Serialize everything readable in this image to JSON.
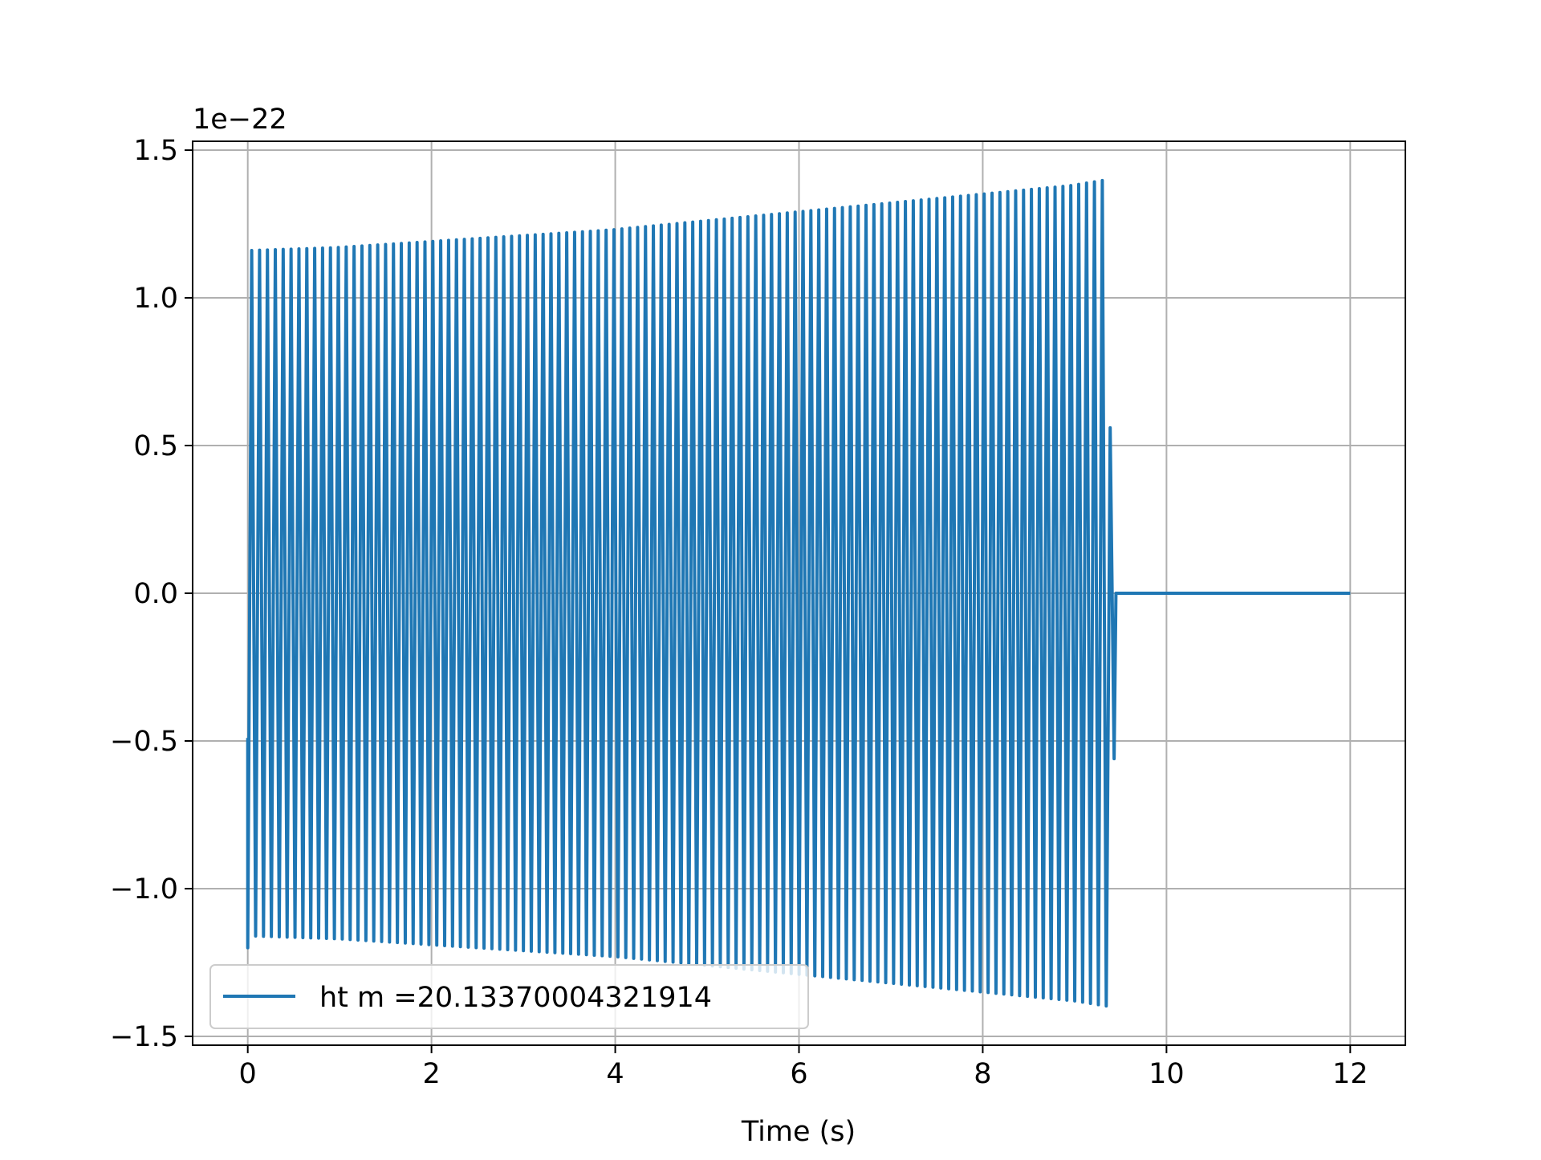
{
  "chart_data": {
    "type": "line",
    "title": "",
    "xlabel": "Time (s)",
    "ylabel": "",
    "y_offset_label": "1e−22",
    "y_scale_factor": 1e-22,
    "xlim": [
      -0.6,
      12.6
    ],
    "ylim": [
      -1.53,
      1.53
    ],
    "xticks": [
      0,
      2,
      4,
      6,
      8,
      10,
      12
    ],
    "xtick_labels": [
      "0",
      "2",
      "4",
      "6",
      "8",
      "10",
      "12"
    ],
    "yticks": [
      -1.5,
      -1.0,
      -0.5,
      0.0,
      0.5,
      1.0,
      1.5
    ],
    "ytick_labels": [
      "−1.5",
      "−1.0",
      "−0.5",
      "0.0",
      "0.5",
      "1.0",
      "1.5"
    ],
    "grid": true,
    "legend_position": "lower-left",
    "series": [
      {
        "name": "ht m =20.13370004321914",
        "color": "#1f77b4",
        "description_points": {
          "x": [
            0.0,
            0.05,
            1.0,
            2.0,
            3.0,
            4.0,
            5.0,
            6.0,
            7.0,
            8.0,
            9.0,
            9.4,
            9.45,
            12.0
          ],
          "envelope_upper": [
            -0.49,
            1.16,
            1.17,
            1.19,
            1.21,
            1.23,
            1.26,
            1.29,
            1.32,
            1.35,
            1.38,
            1.4,
            0.0,
            0.0
          ],
          "envelope_lower": [
            -1.2,
            -1.16,
            -1.17,
            -1.19,
            -1.21,
            -1.23,
            -1.26,
            -1.29,
            -1.32,
            -1.35,
            -1.38,
            -1.4,
            0.0,
            0.0
          ]
        },
        "oscillating_until": 9.43,
        "cycles_visible": 110,
        "after_merger_value": 0.0,
        "end_x": 12.0
      }
    ]
  }
}
